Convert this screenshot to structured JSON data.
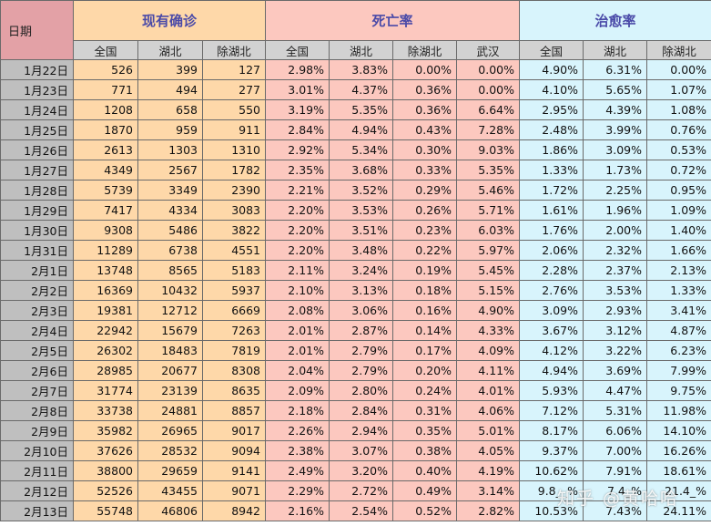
{
  "header": {
    "date_label": "日期",
    "groups": {
      "confirmed": "现有确诊",
      "death_rate": "死亡率",
      "cure_rate": "治愈率"
    },
    "subheaders": [
      "全国",
      "湖北",
      "除湖北",
      "全国",
      "湖北",
      "除湖北",
      "武汉",
      "全国",
      "湖北",
      "除湖北"
    ]
  },
  "rows": [
    {
      "date": "1月22日",
      "c_nat": "526",
      "c_hb": "399",
      "c_ex": "127",
      "d_nat": "2.98%",
      "d_hb": "3.83%",
      "d_ex": "0.00%",
      "d_wh": "0.00%",
      "r_nat": "4.90%",
      "r_hb": "6.31%",
      "r_ex": "0.00%"
    },
    {
      "date": "1月23日",
      "c_nat": "771",
      "c_hb": "494",
      "c_ex": "277",
      "d_nat": "3.01%",
      "d_hb": "4.37%",
      "d_ex": "0.36%",
      "d_wh": "0.00%",
      "r_nat": "4.10%",
      "r_hb": "5.65%",
      "r_ex": "1.07%"
    },
    {
      "date": "1月24日",
      "c_nat": "1208",
      "c_hb": "658",
      "c_ex": "550",
      "d_nat": "3.19%",
      "d_hb": "5.35%",
      "d_ex": "0.36%",
      "d_wh": "6.64%",
      "r_nat": "2.95%",
      "r_hb": "4.39%",
      "r_ex": "1.08%"
    },
    {
      "date": "1月25日",
      "c_nat": "1870",
      "c_hb": "959",
      "c_ex": "911",
      "d_nat": "2.84%",
      "d_hb": "4.94%",
      "d_ex": "0.43%",
      "d_wh": "7.28%",
      "r_nat": "2.48%",
      "r_hb": "3.99%",
      "r_ex": "0.76%"
    },
    {
      "date": "1月26日",
      "c_nat": "2613",
      "c_hb": "1303",
      "c_ex": "1310",
      "d_nat": "2.92%",
      "d_hb": "5.34%",
      "d_ex": "0.30%",
      "d_wh": "9.03%",
      "r_nat": "1.86%",
      "r_hb": "3.09%",
      "r_ex": "0.53%"
    },
    {
      "date": "1月27日",
      "c_nat": "4349",
      "c_hb": "2567",
      "c_ex": "1782",
      "d_nat": "2.35%",
      "d_hb": "3.68%",
      "d_ex": "0.33%",
      "d_wh": "5.35%",
      "r_nat": "1.33%",
      "r_hb": "1.73%",
      "r_ex": "0.72%"
    },
    {
      "date": "1月28日",
      "c_nat": "5739",
      "c_hb": "3349",
      "c_ex": "2390",
      "d_nat": "2.21%",
      "d_hb": "3.52%",
      "d_ex": "0.29%",
      "d_wh": "5.46%",
      "r_nat": "1.72%",
      "r_hb": "2.25%",
      "r_ex": "0.95%"
    },
    {
      "date": "1月29日",
      "c_nat": "7417",
      "c_hb": "4334",
      "c_ex": "3083",
      "d_nat": "2.20%",
      "d_hb": "3.53%",
      "d_ex": "0.26%",
      "d_wh": "5.71%",
      "r_nat": "1.61%",
      "r_hb": "1.96%",
      "r_ex": "1.09%"
    },
    {
      "date": "1月30日",
      "c_nat": "9308",
      "c_hb": "5486",
      "c_ex": "3822",
      "d_nat": "2.20%",
      "d_hb": "3.51%",
      "d_ex": "0.23%",
      "d_wh": "6.03%",
      "r_nat": "1.76%",
      "r_hb": "2.00%",
      "r_ex": "1.40%"
    },
    {
      "date": "1月31日",
      "c_nat": "11289",
      "c_hb": "6738",
      "c_ex": "4551",
      "d_nat": "2.20%",
      "d_hb": "3.48%",
      "d_ex": "0.22%",
      "d_wh": "5.97%",
      "r_nat": "2.06%",
      "r_hb": "2.32%",
      "r_ex": "1.66%"
    },
    {
      "date": "2月1日",
      "c_nat": "13748",
      "c_hb": "8565",
      "c_ex": "5183",
      "d_nat": "2.11%",
      "d_hb": "3.24%",
      "d_ex": "0.19%",
      "d_wh": "5.45%",
      "r_nat": "2.28%",
      "r_hb": "2.37%",
      "r_ex": "2.13%"
    },
    {
      "date": "2月2日",
      "c_nat": "16369",
      "c_hb": "10432",
      "c_ex": "5937",
      "d_nat": "2.10%",
      "d_hb": "3.13%",
      "d_ex": "0.18%",
      "d_wh": "5.15%",
      "r_nat": "2.76%",
      "r_hb": "3.53%",
      "r_ex": "1.33%"
    },
    {
      "date": "2月3日",
      "c_nat": "19381",
      "c_hb": "12712",
      "c_ex": "6669",
      "d_nat": "2.08%",
      "d_hb": "3.06%",
      "d_ex": "0.16%",
      "d_wh": "4.90%",
      "r_nat": "3.09%",
      "r_hb": "2.93%",
      "r_ex": "3.41%"
    },
    {
      "date": "2月4日",
      "c_nat": "22942",
      "c_hb": "15679",
      "c_ex": "7263",
      "d_nat": "2.01%",
      "d_hb": "2.87%",
      "d_ex": "0.14%",
      "d_wh": "4.33%",
      "r_nat": "3.67%",
      "r_hb": "3.12%",
      "r_ex": "4.87%"
    },
    {
      "date": "2月5日",
      "c_nat": "26302",
      "c_hb": "18483",
      "c_ex": "7819",
      "d_nat": "2.01%",
      "d_hb": "2.79%",
      "d_ex": "0.17%",
      "d_wh": "4.09%",
      "r_nat": "4.12%",
      "r_hb": "3.22%",
      "r_ex": "6.23%"
    },
    {
      "date": "2月6日",
      "c_nat": "28985",
      "c_hb": "20677",
      "c_ex": "8308",
      "d_nat": "2.04%",
      "d_hb": "2.79%",
      "d_ex": "0.20%",
      "d_wh": "4.11%",
      "r_nat": "4.94%",
      "r_hb": "3.69%",
      "r_ex": "7.99%"
    },
    {
      "date": "2月7日",
      "c_nat": "31774",
      "c_hb": "23139",
      "c_ex": "8635",
      "d_nat": "2.09%",
      "d_hb": "2.80%",
      "d_ex": "0.24%",
      "d_wh": "4.01%",
      "r_nat": "5.93%",
      "r_hb": "4.47%",
      "r_ex": "9.75%"
    },
    {
      "date": "2月8日",
      "c_nat": "33738",
      "c_hb": "24881",
      "c_ex": "8857",
      "d_nat": "2.18%",
      "d_hb": "2.84%",
      "d_ex": "0.31%",
      "d_wh": "4.06%",
      "r_nat": "7.12%",
      "r_hb": "5.31%",
      "r_ex": "11.98%"
    },
    {
      "date": "2月9日",
      "c_nat": "35982",
      "c_hb": "26965",
      "c_ex": "9017",
      "d_nat": "2.26%",
      "d_hb": "2.94%",
      "d_ex": "0.35%",
      "d_wh": "5.01%",
      "r_nat": "8.17%",
      "r_hb": "6.06%",
      "r_ex": "14.10%"
    },
    {
      "date": "2月10日",
      "c_nat": "37626",
      "c_hb": "28532",
      "c_ex": "9094",
      "d_nat": "2.38%",
      "d_hb": "3.07%",
      "d_ex": "0.38%",
      "d_wh": "4.05%",
      "r_nat": "9.37%",
      "r_hb": "7.00%",
      "r_ex": "16.26%"
    },
    {
      "date": "2月11日",
      "c_nat": "38800",
      "c_hb": "29659",
      "c_ex": "9141",
      "d_nat": "2.49%",
      "d_hb": "3.20%",
      "d_ex": "0.40%",
      "d_wh": "4.19%",
      "r_nat": "10.62%",
      "r_hb": "7.91%",
      "r_ex": "18.61%"
    },
    {
      "date": "2月12日",
      "c_nat": "52526",
      "c_hb": "43455",
      "c_ex": "9071",
      "d_nat": "2.29%",
      "d_hb": "2.72%",
      "d_ex": "0.49%",
      "d_wh": "3.14%",
      "r_nat": "9.8__%",
      "r_hb": "7.4_%",
      "r_ex": "21.4_%"
    },
    {
      "date": "2月13日",
      "c_nat": "55748",
      "c_hb": "46806",
      "c_ex": "8942",
      "d_nat": "2.16%",
      "d_hb": "2.54%",
      "d_ex": "0.52%",
      "d_wh": "2.82%",
      "r_nat": "10.53%",
      "r_hb": "7.43%",
      "r_ex": "24.11%"
    }
  ],
  "watermark": "知乎 @黄哈哈",
  "colors": {
    "date_header": "#e3a1a6",
    "date_cell": "#bfbfbf",
    "subheader": "#d2d2d2",
    "confirmed_bg": "#fed8a9",
    "death_bg": "#fcc8bf",
    "cure_bg": "#d8f4fc",
    "group_title": "#4a4aa8"
  }
}
